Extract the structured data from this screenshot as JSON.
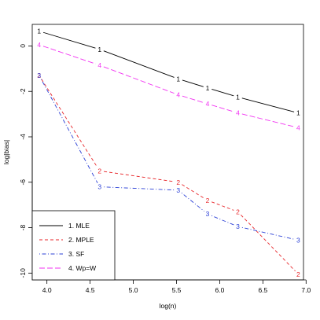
{
  "chart_data": {
    "type": "line",
    "title": "",
    "xlabel": "log(n)",
    "ylabel": "log|bias|",
    "xlim": [
      3.83,
      6.97
    ],
    "ylim": [
      -10.3,
      0.95
    ],
    "xticks": [
      4.0,
      4.5,
      5.0,
      5.5,
      6.0,
      6.5,
      7.0
    ],
    "xtick_labels": [
      "4.0",
      "4.5",
      "5.0",
      "5.5",
      "6.0",
      "6.5",
      "7.0"
    ],
    "yticks": [
      0,
      -2,
      -4,
      -6,
      -8,
      -10
    ],
    "ytick_labels": [
      "0",
      "-2",
      "-4",
      "-6",
      "-8",
      "-10"
    ],
    "grid": false,
    "legend_position": "bottom-left",
    "x": [
      3.91,
      4.61,
      5.52,
      5.86,
      6.21,
      6.91
    ],
    "series": [
      {
        "name": "1. MLE",
        "marker": "1",
        "color": "#000000",
        "dash": "solid",
        "values": [
          0.65,
          -0.15,
          -1.45,
          -1.85,
          -2.25,
          -2.95
        ]
      },
      {
        "name": "2. MPLE",
        "marker": "2",
        "color": "#e8262a",
        "dash": "dashed",
        "values": [
          -1.3,
          -5.5,
          -6.0,
          -6.8,
          -7.3,
          -10.05
        ]
      },
      {
        "name": "3. SF",
        "marker": "3",
        "color": "#2a3fd6",
        "dash": "dotdash",
        "values": [
          -1.3,
          -6.2,
          -6.35,
          -7.4,
          -7.95,
          -8.55
        ]
      },
      {
        "name": "4. Wp=W",
        "marker": "4",
        "color": "#f233f2",
        "dash": "longdash",
        "values": [
          0.05,
          -0.85,
          -2.15,
          -2.55,
          -2.95,
          -3.6
        ]
      }
    ]
  }
}
